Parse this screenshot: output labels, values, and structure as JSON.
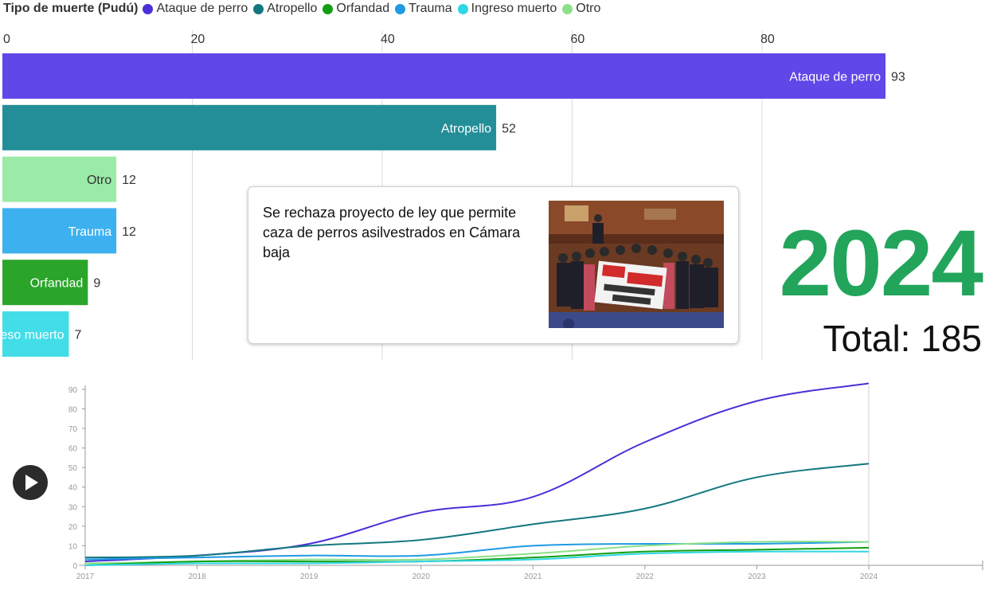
{
  "legend": {
    "title": "Tipo de muerte (Pudú)",
    "items": [
      {
        "label": "Ataque de perro",
        "color": "#4a30d9"
      },
      {
        "label": "Atropello",
        "color": "#14777f"
      },
      {
        "label": "Orfandad",
        "color": "#139f13"
      },
      {
        "label": "Trauma",
        "color": "#1f9ae3"
      },
      {
        "label": "Ingreso muerto",
        "color": "#2fd6e3"
      },
      {
        "label": "Otro",
        "color": "#8ce08a"
      }
    ]
  },
  "headline": "Se rechaza proyecto de ley que permite caza de perros asilvestrados en Cámara baja",
  "year": "2024",
  "total_label": "Total: 185",
  "play_icon": "play-icon",
  "chart_data": [
    {
      "type": "bar",
      "orientation": "horizontal",
      "xlim": [
        0,
        93
      ],
      "ticks": [
        0,
        20,
        40,
        60,
        80
      ],
      "grid": true,
      "bars": [
        {
          "label": "Ataque de perro",
          "value": 93,
          "color": "#6047e8"
        },
        {
          "label": "Atropello",
          "value": 52,
          "color": "#238e98"
        },
        {
          "label": "Otro",
          "value": 12,
          "color": "#9aeba7"
        },
        {
          "label": "Trauma",
          "value": 12,
          "color": "#3db1f0"
        },
        {
          "label": "Orfandad",
          "value": 9,
          "color": "#2aa52a"
        },
        {
          "label": "Ingreso muerto",
          "value": 7,
          "color": "#43dde8"
        }
      ]
    },
    {
      "type": "line",
      "x": [
        2017,
        2018,
        2019,
        2020,
        2021,
        2022,
        2023,
        2024
      ],
      "ylim": [
        0,
        92
      ],
      "yticks": [
        0,
        10,
        20,
        30,
        40,
        50,
        60,
        70,
        80,
        90
      ],
      "series": [
        {
          "name": "Ataque de perro",
          "color": "#4a30d9",
          "values": [
            2,
            5,
            11,
            27,
            35,
            63,
            84,
            93
          ]
        },
        {
          "name": "Atropello",
          "color": "#14777f",
          "values": [
            4,
            5,
            10,
            13,
            21,
            29,
            45,
            52
          ]
        },
        {
          "name": "Trauma",
          "color": "#1f9ae3",
          "values": [
            3,
            4,
            5,
            5,
            10,
            11,
            11,
            12
          ]
        },
        {
          "name": "Otro",
          "color": "#8ce08a",
          "values": [
            1,
            2,
            3,
            3,
            6,
            10,
            12,
            12
          ]
        },
        {
          "name": "Orfandad",
          "color": "#139f13",
          "values": [
            0,
            2,
            2,
            2,
            4,
            7,
            8,
            9
          ]
        },
        {
          "name": "Ingreso muerto",
          "color": "#2fd6e3",
          "values": [
            0,
            1,
            1,
            2,
            3,
            6,
            7,
            7
          ]
        }
      ]
    }
  ]
}
